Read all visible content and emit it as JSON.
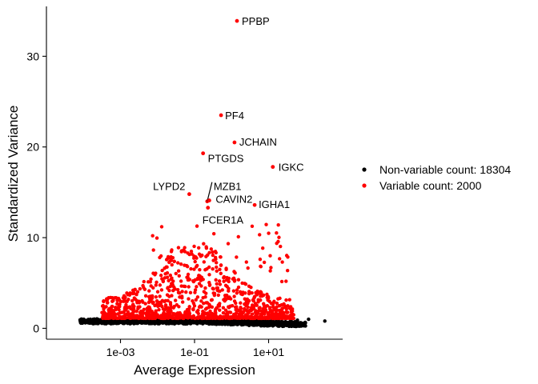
{
  "chart_data": {
    "type": "scatter",
    "xlabel": "Average Expression",
    "ylabel": "Standardized Variance",
    "xscale": "log10",
    "x_ticks": [
      0.001,
      0.1,
      10
    ],
    "x_tick_labels": [
      "1e-03",
      "1e-01",
      "1e+01"
    ],
    "xlim": [
      1e-05,
      1000
    ],
    "y_ticks": [
      0,
      10,
      20,
      30
    ],
    "y_tick_labels": [
      "0",
      "10",
      "20",
      "30"
    ],
    "ylim": [
      -1.2,
      35.5
    ],
    "grid": false,
    "legend_position": "right",
    "series": [
      {
        "name": "Non-variable count: 18304",
        "color": "#000000",
        "legend": "Non-variable count: 18304"
      },
      {
        "name": "Variable count: 2000",
        "color": "#ff0000",
        "legend": "Variable count: 2000"
      }
    ],
    "labeled_points": [
      {
        "label": "PPBP",
        "x": 1.4,
        "y": 33.9
      },
      {
        "label": "PF4",
        "x": 0.52,
        "y": 23.5
      },
      {
        "label": "JCHAIN",
        "x": 1.2,
        "y": 20.5
      },
      {
        "label": "PTGDS",
        "x": 0.17,
        "y": 19.3
      },
      {
        "label": "IGKC",
        "x": 13.0,
        "y": 17.8
      },
      {
        "label": "MZB1",
        "x": 0.22,
        "y": 14.0
      },
      {
        "label": "LYPD2",
        "x": 0.072,
        "y": 14.8
      },
      {
        "label": "CAVIN2",
        "x": 0.25,
        "y": 14.1
      },
      {
        "label": "IGHA1",
        "x": 4.2,
        "y": 13.6
      },
      {
        "label": "FCER1A",
        "x": 0.23,
        "y": 13.3
      }
    ]
  }
}
